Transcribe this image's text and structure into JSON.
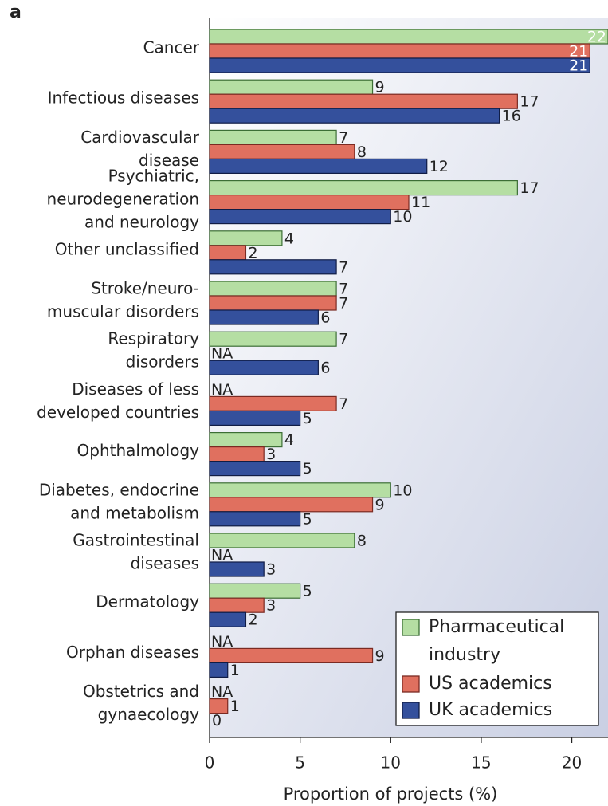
{
  "chart_data": {
    "type": "hbar",
    "panel_label": "a",
    "x_label": "Proportion of projects (%)",
    "categories": [
      "Cancer",
      "Infectious diseases",
      "Cardiovascular\ndisease",
      "Psychiatric,\nneurodegeneration\nand neurology",
      "Other unclassified",
      "Stroke/neuro-\nmuscular disorders",
      "Respiratory\ndisorders",
      "Diseases of less\ndeveloped countries",
      "Ophthalmology",
      "Diabetes, endocrine\nand metabolism",
      "Gastrointestinal\ndiseases",
      "Dermatology",
      "Orphan diseases",
      "Obstetrics and\ngynaecology"
    ],
    "series": [
      {
        "name": "Pharmaceutical\nindustry",
        "color": "#b5dea3",
        "stroke": "#3c6e35",
        "values": [
          22,
          9,
          7,
          17,
          4,
          7,
          7,
          null,
          4,
          10,
          8,
          5,
          null,
          null
        ],
        "value_labels": [
          "22",
          "9",
          "7",
          "17",
          "4",
          "7",
          "7",
          "NA",
          "4",
          "10",
          "8",
          "5",
          "NA",
          "NA"
        ]
      },
      {
        "name": "US academics",
        "color": "#e0705f",
        "stroke": "#7a2a22",
        "values": [
          21,
          17,
          8,
          11,
          2,
          7,
          null,
          7,
          3,
          9,
          null,
          3,
          9,
          1
        ],
        "value_labels": [
          "21",
          "17",
          "8",
          "11",
          "2",
          "7",
          "NA",
          "7",
          "3",
          "9",
          "NA",
          "3",
          "9",
          "1"
        ]
      },
      {
        "name": "UK academics",
        "color": "#34509c",
        "stroke": "#101c45",
        "values": [
          21,
          16,
          12,
          10,
          7,
          6,
          6,
          5,
          5,
          5,
          3,
          2,
          1,
          0
        ],
        "value_labels": [
          "21",
          "16",
          "12",
          "10",
          "7",
          "6",
          "6",
          "5",
          "5",
          "5",
          "3",
          "2",
          "1",
          "0"
        ]
      }
    ],
    "xlim": [
      0,
      22
    ],
    "xticks": [
      0,
      5,
      10,
      15,
      20
    ],
    "legend": "lower right"
  }
}
